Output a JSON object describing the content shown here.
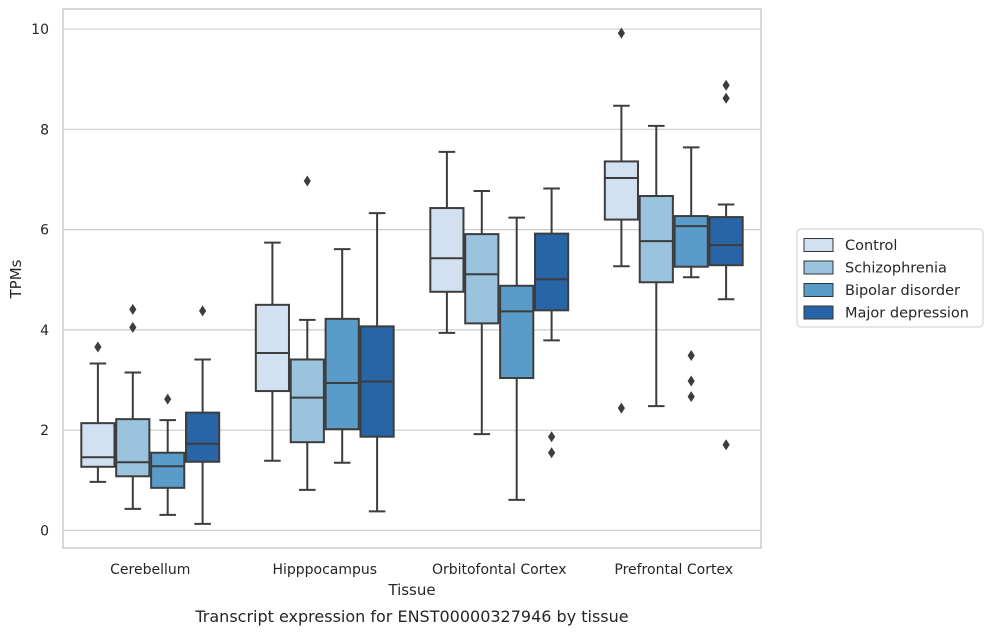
{
  "chart_data": {
    "type": "boxplot",
    "title": "Transcript expression for ENST00000327946 by tissue",
    "xlabel": "Tissue",
    "ylabel": "TPMs",
    "ylim": [
      -0.35,
      10.4
    ],
    "yticks": [
      0,
      2,
      4,
      6,
      8,
      10
    ],
    "grid": "horizontal",
    "legend_position": "right",
    "categories": [
      "Cerebellum",
      "Hipppocampus",
      "Orbitofontal Cortex",
      "Prefrontal Cortex"
    ],
    "series": [
      {
        "name": "Control",
        "color": "#d1e1f1",
        "boxes": [
          {
            "whislo": 0.97,
            "q1": 1.27,
            "med": 1.46,
            "q3": 2.14,
            "whishi": 3.33,
            "fliers": [
              3.66
            ]
          },
          {
            "whislo": 1.39,
            "q1": 2.78,
            "med": 3.54,
            "q3": 4.5,
            "whishi": 5.74,
            "fliers": []
          },
          {
            "whislo": 3.94,
            "q1": 4.76,
            "med": 5.43,
            "q3": 6.43,
            "whishi": 7.55,
            "fliers": []
          },
          {
            "whislo": 5.27,
            "q1": 6.2,
            "med": 7.03,
            "q3": 7.36,
            "whishi": 8.47,
            "fliers": [
              9.92,
              2.44
            ]
          }
        ]
      },
      {
        "name": "Schizophrenia",
        "color": "#9ac3de",
        "boxes": [
          {
            "whislo": 0.43,
            "q1": 1.08,
            "med": 1.36,
            "q3": 2.22,
            "whishi": 3.15,
            "fliers": [
              4.41,
              4.05
            ]
          },
          {
            "whislo": 0.81,
            "q1": 1.76,
            "med": 2.65,
            "q3": 3.41,
            "whishi": 4.2,
            "fliers": [
              6.97
            ]
          },
          {
            "whislo": 1.92,
            "q1": 4.13,
            "med": 5.11,
            "q3": 5.91,
            "whishi": 6.77,
            "fliers": []
          },
          {
            "whislo": 2.48,
            "q1": 4.95,
            "med": 5.77,
            "q3": 6.67,
            "whishi": 8.07,
            "fliers": []
          }
        ]
      },
      {
        "name": "Bipolar disorder",
        "color": "#5a9cc9",
        "boxes": [
          {
            "whislo": 0.31,
            "q1": 0.85,
            "med": 1.28,
            "q3": 1.55,
            "whishi": 2.2,
            "fliers": [
              2.62
            ]
          },
          {
            "whislo": 1.35,
            "q1": 2.02,
            "med": 2.94,
            "q3": 4.22,
            "whishi": 5.61,
            "fliers": []
          },
          {
            "whislo": 0.61,
            "q1": 3.04,
            "med": 4.37,
            "q3": 4.88,
            "whishi": 6.24,
            "fliers": []
          },
          {
            "whislo": 5.05,
            "q1": 5.26,
            "med": 6.07,
            "q3": 6.27,
            "whishi": 7.64,
            "fliers": [
              3.49,
              2.98,
              2.67
            ]
          }
        ]
      },
      {
        "name": "Major depression",
        "color": "#2865a6",
        "boxes": [
          {
            "whislo": 0.13,
            "q1": 1.37,
            "med": 1.73,
            "q3": 2.35,
            "whishi": 3.41,
            "fliers": [
              4.38
            ]
          },
          {
            "whislo": 0.38,
            "q1": 1.87,
            "med": 2.97,
            "q3": 4.07,
            "whishi": 6.33,
            "fliers": []
          },
          {
            "whislo": 3.79,
            "q1": 4.39,
            "med": 5.01,
            "q3": 5.92,
            "whishi": 6.82,
            "fliers": [
              1.87,
              1.55
            ]
          },
          {
            "whislo": 4.61,
            "q1": 5.29,
            "med": 5.69,
            "q3": 6.25,
            "whishi": 6.5,
            "fliers": [
              8.88,
              8.62,
              1.71
            ]
          }
        ]
      }
    ]
  }
}
